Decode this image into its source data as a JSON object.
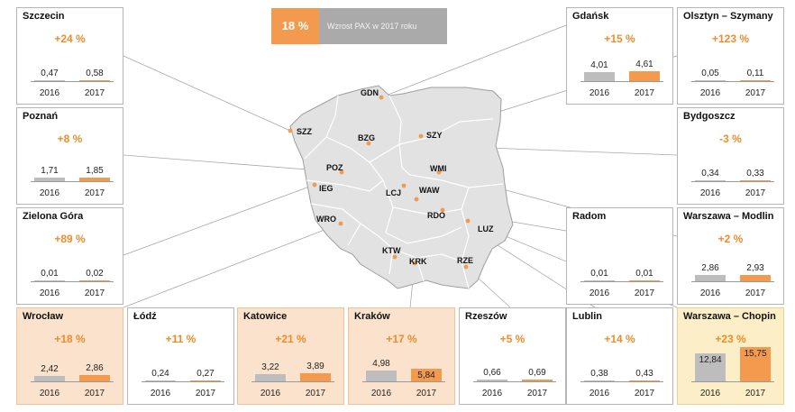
{
  "banner": {
    "percent": "18 %",
    "label": "Wzrost PAX w 2017 roku"
  },
  "colors": {
    "orange": "#f39a4e",
    "gray": "#bdbdbd",
    "map_fill": "#e2e2e2",
    "map_border": "#9e9e9e",
    "growth_text": "#ef8c2c",
    "highlight_orange": "#fbe2cc",
    "highlight_yellow": "#fcefc7"
  },
  "chart_data": {
    "type": "bar",
    "series_years": [
      "2016",
      "2017"
    ],
    "unit_note": "",
    "airports": [
      {
        "name": "Szczecin",
        "growth": "+24 %",
        "v2016": "0,47",
        "v2017": "0,58",
        "n2016": 0.47,
        "n2017": 0.58,
        "highlight": "none"
      },
      {
        "name": "Poznań",
        "growth": "+8 %",
        "v2016": "1,71",
        "v2017": "1,85",
        "n2016": 1.71,
        "n2017": 1.85,
        "highlight": "none"
      },
      {
        "name": "Zielona Góra",
        "growth": "+89 %",
        "v2016": "0,01",
        "v2017": "0,02",
        "n2016": 0.01,
        "n2017": 0.02,
        "highlight": "none"
      },
      {
        "name": "Wrocław",
        "growth": "+18 %",
        "v2016": "2,42",
        "v2017": "2,86",
        "n2016": 2.42,
        "n2017": 2.86,
        "highlight": "orange"
      },
      {
        "name": "Łódź",
        "growth": "+11 %",
        "v2016": "0,24",
        "v2017": "0,27",
        "n2016": 0.24,
        "n2017": 0.27,
        "highlight": "none"
      },
      {
        "name": "Katowice",
        "growth": "+21 %",
        "v2016": "3,22",
        "v2017": "3,89",
        "n2016": 3.22,
        "n2017": 3.89,
        "highlight": "orange"
      },
      {
        "name": "Kraków",
        "growth": "+17 %",
        "v2016": "4,98",
        "v2017": "5,84",
        "n2016": 4.98,
        "n2017": 5.84,
        "highlight": "orange"
      },
      {
        "name": "Rzeszów",
        "growth": "+5 %",
        "v2016": "0,66",
        "v2017": "0,69",
        "n2016": 0.66,
        "n2017": 0.69,
        "highlight": "none"
      },
      {
        "name": "Lublin",
        "growth": "+14 %",
        "v2016": "0,38",
        "v2017": "0,43",
        "n2016": 0.38,
        "n2017": 0.43,
        "highlight": "none"
      },
      {
        "name": "Warszawa – Chopin",
        "growth": "+23 %",
        "v2016": "12,84",
        "v2017": "15,75",
        "n2016": 12.84,
        "n2017": 15.75,
        "highlight": "yellow"
      },
      {
        "name": "Warszawa – Modlin",
        "growth": "+2 %",
        "v2016": "2,86",
        "v2017": "2,93",
        "n2016": 2.86,
        "n2017": 2.93,
        "highlight": "none"
      },
      {
        "name": "Radom",
        "growth": "",
        "v2016": "0,01",
        "v2017": "0,01",
        "n2016": 0.01,
        "n2017": 0.01,
        "highlight": "none"
      },
      {
        "name": "Bydgoszcz",
        "growth": "-3 %",
        "v2016": "0,34",
        "v2017": "0,33",
        "n2016": 0.34,
        "n2017": 0.33,
        "highlight": "none"
      },
      {
        "name": "Olsztyn – Szymany",
        "growth": "+123 %",
        "v2016": "0,05",
        "v2017": "0,11",
        "n2016": 0.05,
        "n2017": 0.11,
        "highlight": "none"
      },
      {
        "name": "Gdańsk",
        "growth": "+15 %",
        "v2016": "4,01",
        "v2017": "4,61",
        "n2016": 4.01,
        "n2017": 4.61,
        "highlight": "none"
      }
    ]
  },
  "map": {
    "codes": [
      "GDN",
      "SZZ",
      "SZY",
      "BZG",
      "POZ",
      "WMI",
      "IEG",
      "LCJ",
      "WAW",
      "WRO",
      "RDO",
      "LUZ",
      "KTW",
      "KRK",
      "RZE"
    ]
  }
}
